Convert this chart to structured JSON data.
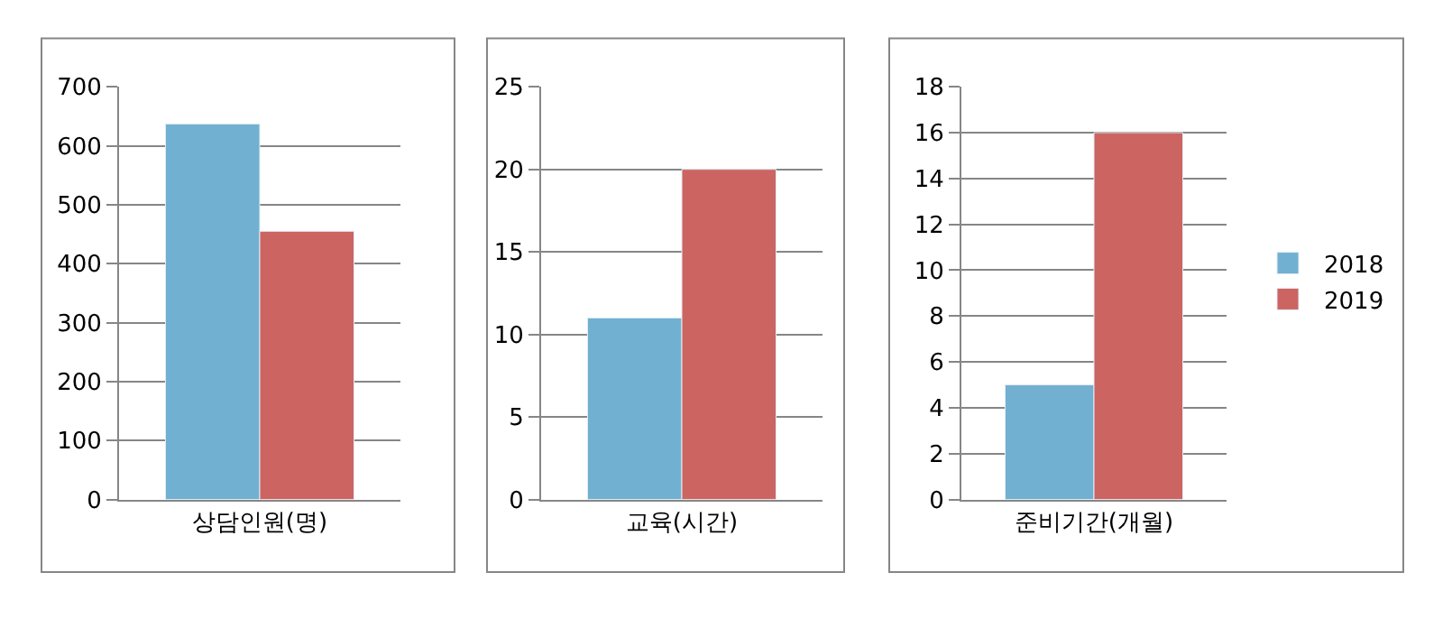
{
  "chart_data": [
    {
      "type": "bar",
      "categories": [
        "상담인원(명)"
      ],
      "series": [
        {
          "color": "#71b0d0",
          "values": [
            637
          ]
        },
        {
          "color": "#cc6462",
          "values": [
            455
          ]
        }
      ],
      "ylim": [
        0,
        700
      ],
      "yticks": [
        0,
        100,
        200,
        300,
        400,
        500,
        600,
        700
      ],
      "grid": "y",
      "legend": false
    },
    {
      "type": "bar",
      "categories": [
        "교육(시간)"
      ],
      "series": [
        {
          "color": "#71b0d0",
          "values": [
            11
          ]
        },
        {
          "color": "#cc6462",
          "values": [
            20
          ]
        }
      ],
      "ylim": [
        0,
        25
      ],
      "yticks": [
        0,
        5,
        10,
        15,
        20,
        25
      ],
      "grid": "y",
      "legend": false
    },
    {
      "type": "bar",
      "categories": [
        "준비기간(개월)"
      ],
      "series": [
        {
          "name": "2018",
          "color": "#71b0d0",
          "values": [
            5
          ]
        },
        {
          "name": "2019",
          "color": "#cc6462",
          "values": [
            16
          ]
        }
      ],
      "ylim": [
        0,
        18
      ],
      "yticks": [
        0,
        2,
        4,
        6,
        8,
        10,
        12,
        14,
        16,
        18
      ],
      "grid": "y",
      "legend": "right"
    }
  ]
}
